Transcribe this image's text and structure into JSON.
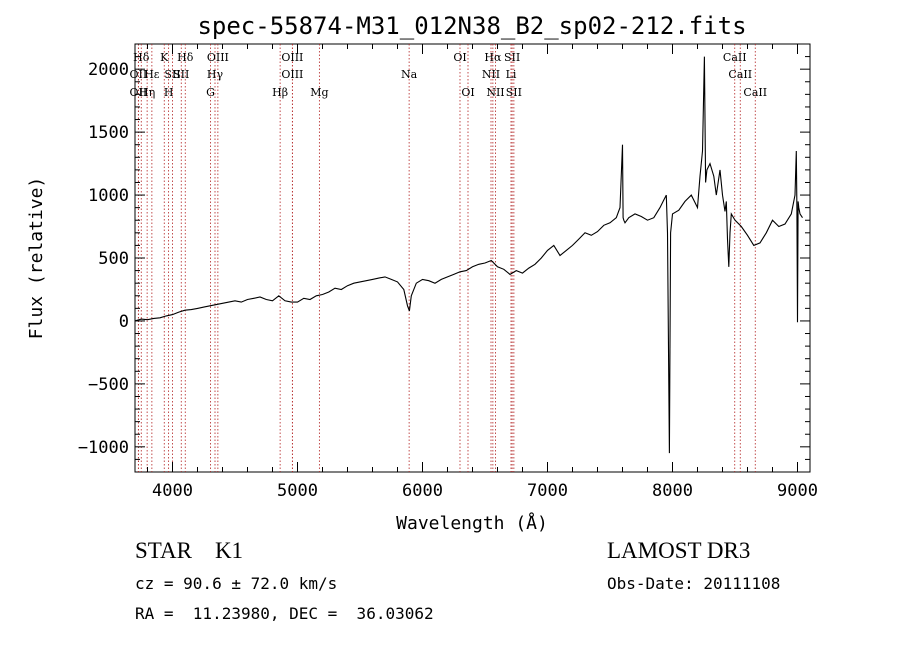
{
  "chart_data": {
    "type": "line",
    "title": "spec-55874-M31_012N38_B2_sp02-212.fits",
    "xlabel": "Wavelength (Å)",
    "ylabel": "Flux (relative)",
    "xlim": [
      3700,
      9100
    ],
    "ylim": [
      -1200,
      2200
    ],
    "xticks": [
      4000,
      5000,
      6000,
      7000,
      8000,
      9000
    ],
    "yticks": [
      -1000,
      -500,
      0,
      500,
      1000,
      1500,
      2000
    ],
    "grid": false,
    "series": [
      {
        "name": "flux",
        "x": [
          3700,
          3750,
          3800,
          3850,
          3900,
          3950,
          4000,
          4050,
          4100,
          4150,
          4200,
          4250,
          4300,
          4350,
          4400,
          4450,
          4500,
          4550,
          4600,
          4650,
          4700,
          4750,
          4800,
          4850,
          4900,
          4950,
          5000,
          5050,
          5100,
          5150,
          5200,
          5250,
          5300,
          5350,
          5400,
          5450,
          5500,
          5550,
          5600,
          5650,
          5700,
          5750,
          5800,
          5850,
          5880,
          5895,
          5910,
          5950,
          6000,
          6050,
          6100,
          6150,
          6200,
          6250,
          6300,
          6350,
          6400,
          6450,
          6500,
          6550,
          6600,
          6650,
          6700,
          6750,
          6800,
          6850,
          6900,
          6950,
          7000,
          7050,
          7100,
          7150,
          7200,
          7250,
          7300,
          7350,
          7400,
          7450,
          7500,
          7550,
          7580,
          7600,
          7605,
          7610,
          7620,
          7650,
          7700,
          7750,
          7800,
          7850,
          7900,
          7925,
          7950,
          7960,
          7970,
          7975,
          7985,
          8000,
          8050,
          8100,
          8150,
          8200,
          8220,
          8240,
          8255,
          8265,
          8275,
          8300,
          8330,
          8350,
          8380,
          8400,
          8420,
          8430,
          8440,
          8450,
          8460,
          8470,
          8500,
          8550,
          8600,
          8650,
          8700,
          8750,
          8800,
          8850,
          8900,
          8950,
          8980,
          8990,
          8995,
          9000,
          9005,
          9010,
          9020,
          9040
        ],
        "values": [
          0,
          15,
          10,
          20,
          25,
          40,
          50,
          70,
          85,
          90,
          100,
          110,
          120,
          130,
          140,
          150,
          160,
          150,
          170,
          180,
          190,
          170,
          160,
          200,
          160,
          150,
          150,
          180,
          170,
          200,
          210,
          230,
          260,
          250,
          280,
          300,
          310,
          320,
          330,
          340,
          350,
          330,
          310,
          250,
          120,
          80,
          200,
          300,
          330,
          320,
          300,
          330,
          350,
          370,
          390,
          400,
          430,
          450,
          460,
          480,
          430,
          410,
          370,
          400,
          380,
          420,
          450,
          500,
          560,
          600,
          520,
          560,
          600,
          650,
          700,
          680,
          710,
          760,
          780,
          820,
          900,
          1400,
          820,
          800,
          780,
          820,
          850,
          830,
          800,
          820,
          900,
          950,
          1000,
          700,
          -500,
          -1050,
          700,
          850,
          880,
          950,
          1000,
          900,
          1150,
          1350,
          2100,
          1100,
          1200,
          1250,
          1150,
          1000,
          1200,
          1000,
          870,
          950,
          650,
          430,
          700,
          850,
          800,
          750,
          680,
          600,
          620,
          700,
          800,
          750,
          770,
          850,
          1000,
          1350,
          900,
          -10,
          950,
          900,
          850,
          820
        ]
      }
    ],
    "lines": [
      {
        "name": "Hδ",
        "x": 3750,
        "row": 1
      },
      {
        "name": "OII",
        "x": 3727,
        "row": 2
      },
      {
        "name": "OII",
        "x": 3727,
        "row": 3
      },
      {
        "name": "Hε",
        "x": 3835,
        "row": 2
      },
      {
        "name": "Hη",
        "x": 3797,
        "row": 3
      },
      {
        "name": "K",
        "x": 3934,
        "row": 1
      },
      {
        "name": "H",
        "x": 3969,
        "row": 3
      },
      {
        "name": "SII",
        "x": 4000,
        "row": 2
      },
      {
        "name": "Hδ",
        "x": 4102,
        "row": 1
      },
      {
        "name": "SII",
        "x": 4070,
        "row": 2
      },
      {
        "name": "OIII",
        "x": 4363,
        "row": 1
      },
      {
        "name": "Hγ",
        "x": 4340,
        "row": 2
      },
      {
        "name": "G",
        "x": 4304,
        "row": 3
      },
      {
        "name": "OIII",
        "x": 4959,
        "row": 1
      },
      {
        "name": "OIII",
        "x": 4959,
        "row": 2
      },
      {
        "name": "Hβ",
        "x": 4861,
        "row": 3
      },
      {
        "name": "Mg",
        "x": 5175,
        "row": 3
      },
      {
        "name": "Na",
        "x": 5893,
        "row": 2
      },
      {
        "name": "OI",
        "x": 6300,
        "row": 1
      },
      {
        "name": "OI",
        "x": 6364,
        "row": 3
      },
      {
        "name": "Hα",
        "x": 6563,
        "row": 1
      },
      {
        "name": "NII",
        "x": 6548,
        "row": 2
      },
      {
        "name": "NII",
        "x": 6584,
        "row": 3
      },
      {
        "name": "SII",
        "x": 6717,
        "row": 1
      },
      {
        "name": "Li",
        "x": 6708,
        "row": 2
      },
      {
        "name": "SII",
        "x": 6731,
        "row": 3
      },
      {
        "name": "CaII",
        "x": 8498,
        "row": 1
      },
      {
        "name": "CaII",
        "x": 8542,
        "row": 2
      },
      {
        "name": "CaII",
        "x": 8662,
        "row": 3
      }
    ]
  },
  "info": {
    "class_line": "STAR    K1",
    "survey": "LAMOST DR3",
    "cz_line": "cz = 90.6 ± 72.0 km/s",
    "obs_line": "Obs-Date: 20111108",
    "coord_line": "RA =  11.23980, DEC =  36.03062"
  }
}
